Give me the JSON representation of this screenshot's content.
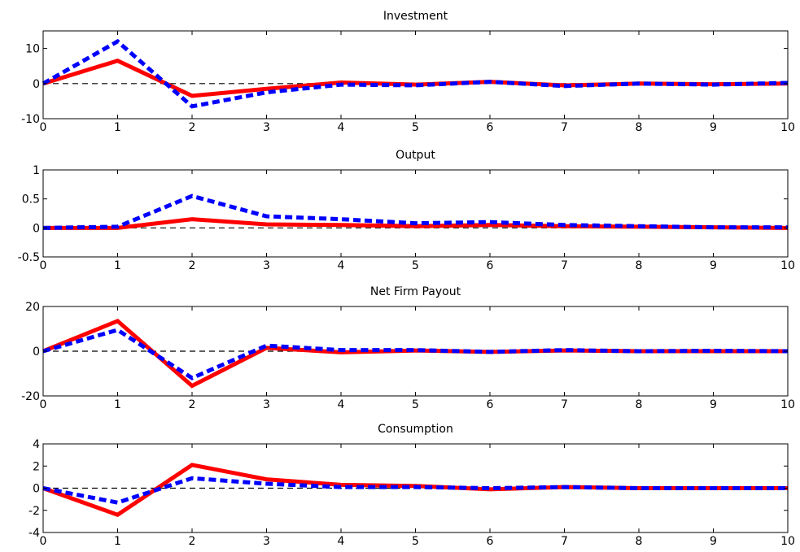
{
  "chart_data": [
    {
      "type": "line",
      "title": "Investment",
      "x": [
        0,
        1,
        2,
        3,
        4,
        5,
        6,
        7,
        8,
        9,
        10
      ],
      "xlim": [
        0,
        10
      ],
      "xticks": [
        0,
        1,
        2,
        3,
        4,
        5,
        6,
        7,
        8,
        9,
        10
      ],
      "ylim": [
        -10,
        15
      ],
      "yticks": [
        -10,
        0,
        10
      ],
      "hline": 0,
      "series": [
        {
          "color": "#ff0000",
          "style": "solid",
          "values": [
            0,
            6.5,
            -3.5,
            -1.5,
            0.3,
            -0.3,
            0.5,
            -0.5,
            0,
            -0.2,
            0
          ]
        },
        {
          "color": "#0000ff",
          "style": "dashed",
          "values": [
            0,
            12,
            -6.5,
            -2.5,
            -0.3,
            -0.5,
            0.5,
            -0.7,
            0,
            -0.3,
            0.2
          ]
        }
      ]
    },
    {
      "type": "line",
      "title": "Output",
      "x": [
        0,
        1,
        2,
        3,
        4,
        5,
        6,
        7,
        8,
        9,
        10
      ],
      "xlim": [
        0,
        10
      ],
      "xticks": [
        0,
        1,
        2,
        3,
        4,
        5,
        6,
        7,
        8,
        9,
        10
      ],
      "ylim": [
        -0.5,
        1
      ],
      "yticks": [
        -0.5,
        0,
        0.5,
        1
      ],
      "hline": 0,
      "series": [
        {
          "color": "#ff0000",
          "style": "solid",
          "values": [
            0,
            0,
            0.15,
            0.06,
            0.05,
            0.03,
            0.05,
            0.03,
            0.02,
            0.01,
            0
          ]
        },
        {
          "color": "#0000ff",
          "style": "dashed",
          "values": [
            0,
            0.02,
            0.55,
            0.2,
            0.15,
            0.08,
            0.1,
            0.05,
            0.03,
            0.01,
            0.01
          ]
        }
      ]
    },
    {
      "type": "line",
      "title": "Net Firm Payout",
      "x": [
        0,
        1,
        2,
        3,
        4,
        5,
        6,
        7,
        8,
        9,
        10
      ],
      "xlim": [
        0,
        10
      ],
      "xticks": [
        0,
        1,
        2,
        3,
        4,
        5,
        6,
        7,
        8,
        9,
        10
      ],
      "ylim": [
        -20,
        20
      ],
      "yticks": [
        -20,
        0,
        20
      ],
      "hline": 0,
      "series": [
        {
          "color": "#ff0000",
          "style": "solid",
          "values": [
            0,
            13.5,
            -15.5,
            1.5,
            -0.5,
            0.3,
            -0.3,
            0.3,
            0,
            0,
            0
          ]
        },
        {
          "color": "#0000ff",
          "style": "dashed",
          "values": [
            0,
            9.5,
            -12,
            2.5,
            0.5,
            0.5,
            -0.3,
            0.5,
            0,
            0.2,
            0
          ]
        }
      ]
    },
    {
      "type": "line",
      "title": "Consumption",
      "x": [
        0,
        1,
        2,
        3,
        4,
        5,
        6,
        7,
        8,
        9,
        10
      ],
      "xlim": [
        0,
        10
      ],
      "xticks": [
        0,
        1,
        2,
        3,
        4,
        5,
        6,
        7,
        8,
        9,
        10
      ],
      "ylim": [
        -4,
        4
      ],
      "yticks": [
        -4,
        -2,
        0,
        2,
        4
      ],
      "hline": 0,
      "series": [
        {
          "color": "#ff0000",
          "style": "solid",
          "values": [
            0,
            -2.4,
            2.1,
            0.8,
            0.3,
            0.2,
            -0.1,
            0.1,
            0,
            0,
            0
          ]
        },
        {
          "color": "#0000ff",
          "style": "dashed",
          "values": [
            0,
            -1.3,
            0.9,
            0.4,
            0.1,
            0.1,
            0,
            0.1,
            0,
            0,
            0
          ]
        }
      ]
    }
  ]
}
